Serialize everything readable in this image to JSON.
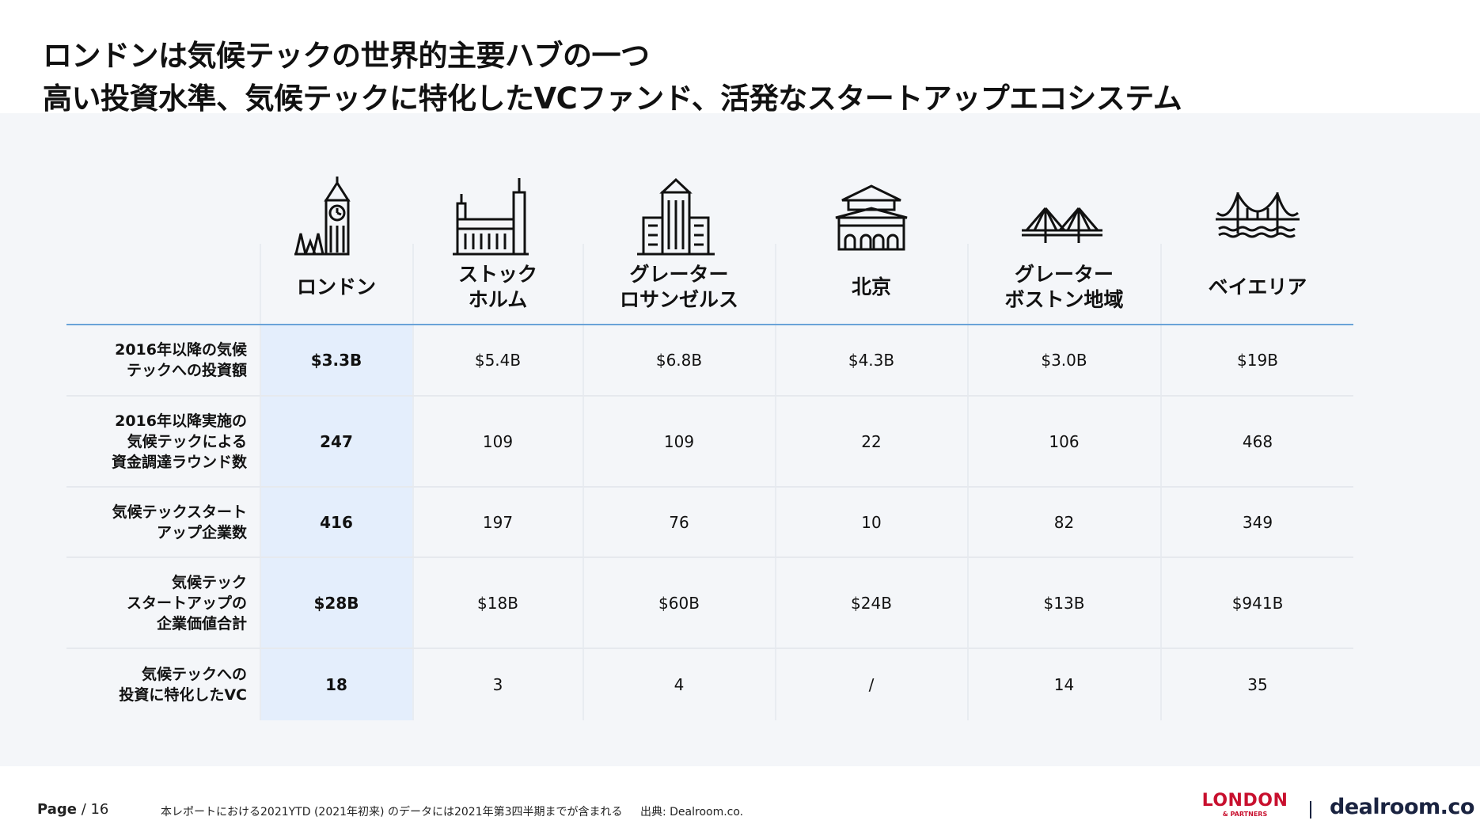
{
  "title": {
    "line1": "ロンドンは気候テックの世界的主要ハブの一つ",
    "line2": "高い投資水準、気候テックに特化したVCファンド、活発なスタートアップエコシステム"
  },
  "cities": [
    {
      "name": "ロンドン",
      "icon": "big-ben-icon"
    },
    {
      "name": "ストック\nホルム",
      "icon": "stockholm-city-hall-icon"
    },
    {
      "name": "グレーター\nロサンゼルス",
      "icon": "los-angeles-building-icon"
    },
    {
      "name": "北京",
      "icon": "forbidden-city-gate-icon"
    },
    {
      "name": "グレーター\nボストン地域",
      "icon": "bridge-icon"
    },
    {
      "name": "ベイエリア",
      "icon": "golden-gate-bridge-icon"
    }
  ],
  "rows": [
    {
      "label": "2016年以降の気候\nテックへの投資額",
      "values": [
        "$3.3B",
        "$5.4B",
        "$6.8B",
        "$4.3B",
        "$3.0B",
        "$19B"
      ]
    },
    {
      "label": "2016年以降実施の\n気候テックによる\n資金調達ラウンド数",
      "values": [
        "247",
        "109",
        "109",
        "22",
        "106",
        "468"
      ]
    },
    {
      "label": "気候テックスタート\nアップ企業数",
      "values": [
        "416",
        "197",
        "76",
        "10",
        "82",
        "349"
      ]
    },
    {
      "label": "気候テック\nスタートアップの\n企業価値合計",
      "values": [
        "$28B",
        "$18B",
        "$60B",
        "$24B",
        "$13B",
        "$941B"
      ]
    },
    {
      "label": "気候テックへの\n投資に特化したVC",
      "values": [
        "18",
        "3",
        "4",
        "/",
        "14",
        "35"
      ]
    }
  ],
  "footer": {
    "page_label": "Page",
    "page_number": "/ 16",
    "note": "本レポートにおける2021YTD (2021年初来) のデータには2021年第3四半期までが含まれる",
    "source": "出典: Dealroom.co."
  },
  "logos": {
    "london_line1": "LONDON",
    "london_line2": "& PARTNERS",
    "dealroom": "dealroom.co"
  },
  "colors": {
    "accent_line": "#6aa3d8",
    "highlight": "#e4eefc",
    "london_red": "#c8102e",
    "dealroom_navy": "#1a2340"
  }
}
